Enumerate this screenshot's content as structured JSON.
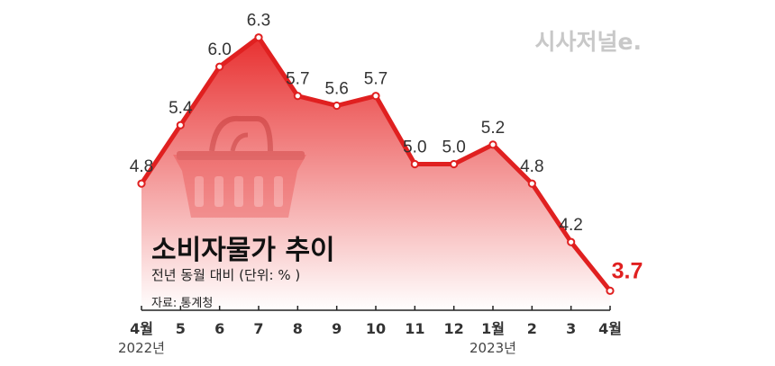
{
  "chart_data": {
    "type": "area",
    "title": "소비자물가 추이",
    "subtitle": "전년 동월 대비 (단위: % )",
    "source": "자료: 통계청",
    "categories": [
      "4월",
      "5",
      "6",
      "7",
      "8",
      "9",
      "10",
      "11",
      "12",
      "1월",
      "2",
      "3",
      "4월"
    ],
    "year_labels": [
      {
        "category_index": 0,
        "text": "2022년"
      },
      {
        "category_index": 9,
        "text": "2023년"
      }
    ],
    "values": [
      4.8,
      5.4,
      6.0,
      6.3,
      5.7,
      5.6,
      5.7,
      5.0,
      5.0,
      5.2,
      4.8,
      4.2,
      3.7
    ],
    "value_labels": [
      "4.8",
      "5.4",
      "6.0",
      "6.3",
      "5.7",
      "5.6",
      "5.7",
      "5.0",
      "5.0",
      "5.2",
      "4.8",
      "4.2",
      "3.7"
    ],
    "ylim": [
      3.5,
      6.5
    ],
    "grid": false,
    "legend": "none",
    "highlight_last": true,
    "colors": {
      "line": "#e02020",
      "fill_top": "#e83030",
      "fill_bottom": "#ffffff",
      "marker_fill": "#ffffff",
      "last_label": "#e02020"
    }
  },
  "logo": "시사저널e."
}
